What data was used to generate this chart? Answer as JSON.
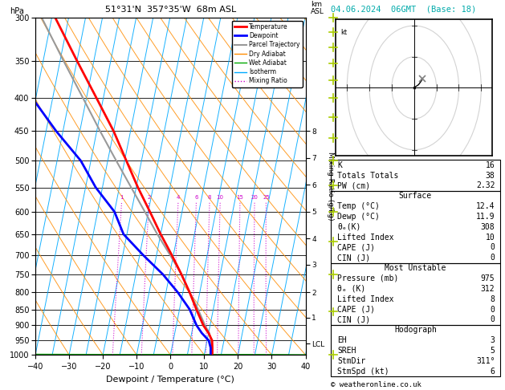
{
  "title_left": "51°31'N  357°35'W  68m ASL",
  "title_right": "04.06.2024  06GMT  (Base: 18)",
  "hpa_label": "hPa",
  "xlabel": "Dewpoint / Temperature (°C)",
  "pressure_levels": [
    300,
    350,
    400,
    450,
    500,
    550,
    600,
    650,
    700,
    750,
    800,
    850,
    900,
    950,
    1000
  ],
  "xlim": [
    -40,
    40
  ],
  "temp_color": "#ff0000",
  "dewp_color": "#0000ff",
  "parcel_color": "#999999",
  "dry_adiabat_color": "#ff8c00",
  "wet_adiabat_color": "#00aa00",
  "isotherm_color": "#00aaff",
  "mixing_ratio_color": "#cc00cc",
  "background_color": "#ffffff",
  "legend_items": [
    {
      "label": "Temperature",
      "color": "#ff0000",
      "lw": 2,
      "ls": "solid"
    },
    {
      "label": "Dewpoint",
      "color": "#0000ff",
      "lw": 2,
      "ls": "solid"
    },
    {
      "label": "Parcel Trajectory",
      "color": "#999999",
      "lw": 1.5,
      "ls": "solid"
    },
    {
      "label": "Dry Adiabat",
      "color": "#ff8c00",
      "lw": 1,
      "ls": "solid"
    },
    {
      "label": "Wet Adiabat",
      "color": "#00aa00",
      "lw": 1,
      "ls": "solid"
    },
    {
      "label": "Isotherm",
      "color": "#00aaff",
      "lw": 1,
      "ls": "solid"
    },
    {
      "label": "Mixing Ratio",
      "color": "#cc00cc",
      "lw": 1,
      "ls": "dotted"
    }
  ],
  "right_panel": {
    "K": 16,
    "Totals_Totals": 38,
    "PW_cm": 2.32,
    "Surface": {
      "Temp_C": 12.4,
      "Dewp_C": 11.9,
      "theta_e_K": 308,
      "Lifted_Index": 10,
      "CAPE_J": 0,
      "CIN_J": 0
    },
    "Most_Unstable": {
      "Pressure_mb": 975,
      "theta_e_K": 312,
      "Lifted_Index": 8,
      "CAPE_J": 0,
      "CIN_J": 0
    },
    "Hodograph": {
      "EH": 3,
      "SREH": 5,
      "StmDir": "311°",
      "StmSpd_kt": 6
    }
  },
  "km_tick_p": [
    960,
    875,
    800,
    725,
    660,
    600,
    545,
    495,
    450
  ],
  "km_tick_lab": [
    "LCL",
    "1",
    "2",
    "3",
    "4",
    "5",
    "6",
    "7",
    "8"
  ],
  "mixing_ratios": [
    1,
    2,
    4,
    6,
    8,
    10,
    15,
    20,
    25
  ],
  "mr_labels": [
    "1",
    "2",
    "4",
    "6",
    "8",
    "10",
    "15",
    "20",
    "25"
  ],
  "temp_p": [
    1000,
    975,
    950,
    925,
    900,
    850,
    800,
    750,
    700,
    650,
    600,
    550,
    500,
    450,
    400,
    350,
    300
  ],
  "temp_T": [
    12.4,
    12.0,
    11.5,
    10.0,
    8.0,
    5.0,
    2.0,
    -1.5,
    -5.5,
    -10.0,
    -14.5,
    -19.5,
    -24.5,
    -30.0,
    -37.0,
    -45.0,
    -54.0
  ],
  "dewp_T": [
    11.9,
    11.5,
    10.5,
    8.0,
    6.0,
    3.0,
    -1.5,
    -7.0,
    -14.0,
    -21.0,
    -25.0,
    -32.0,
    -38.0,
    -47.0,
    -56.0,
    -63.0,
    -70.0
  ],
  "parcel_T": [
    12.4,
    11.8,
    11.2,
    10.2,
    8.5,
    5.5,
    2.0,
    -1.5,
    -6.0,
    -11.0,
    -16.0,
    -21.5,
    -27.5,
    -34.0,
    -41.0,
    -49.0,
    -58.0
  ],
  "skew_factor": 38.0,
  "wind_p_levels": [
    300,
    350,
    400,
    450,
    500,
    550,
    600,
    650,
    700,
    750,
    800,
    850,
    900,
    950,
    1000
  ],
  "wind_u": [
    5,
    5,
    5,
    4,
    4,
    3,
    3,
    3,
    3,
    4,
    4,
    4,
    3,
    3,
    2
  ],
  "wind_v": [
    8,
    8,
    7,
    7,
    6,
    5,
    5,
    4,
    4,
    4,
    3,
    3,
    2,
    2,
    1
  ],
  "wind_color": "#aacc00"
}
